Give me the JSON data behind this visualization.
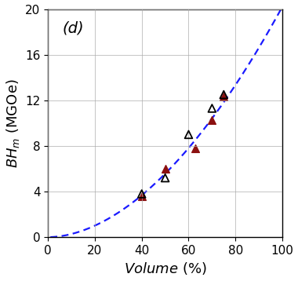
{
  "panel_label": "(d)",
  "xlabel": "Volume (%)",
  "ylabel": "$BH_m$ (MGOe)",
  "xlim": [
    0,
    100
  ],
  "ylim": [
    0,
    20
  ],
  "xticks": [
    0,
    20,
    40,
    60,
    80,
    100
  ],
  "yticks": [
    0,
    4,
    8,
    12,
    16,
    20
  ],
  "open_triangles_x": [
    40,
    50,
    60,
    70,
    75
  ],
  "open_triangles_y": [
    3.8,
    5.2,
    9.0,
    11.3,
    12.5
  ],
  "filled_triangles_x": [
    40,
    50,
    63,
    70,
    75
  ],
  "filled_triangles_y": [
    3.6,
    6.0,
    7.8,
    10.3,
    12.3
  ],
  "curve_color": "#1a1aff",
  "open_marker_color": "black",
  "filled_marker_color": "#8b1010",
  "curve_exponent": 1.86,
  "curve_scale": 0.00385,
  "marker_size": 7,
  "figsize": [
    3.8,
    3.58
  ],
  "dpi": 100,
  "label_fontsize": 13,
  "tick_fontsize": 11,
  "panel_fontsize": 14
}
